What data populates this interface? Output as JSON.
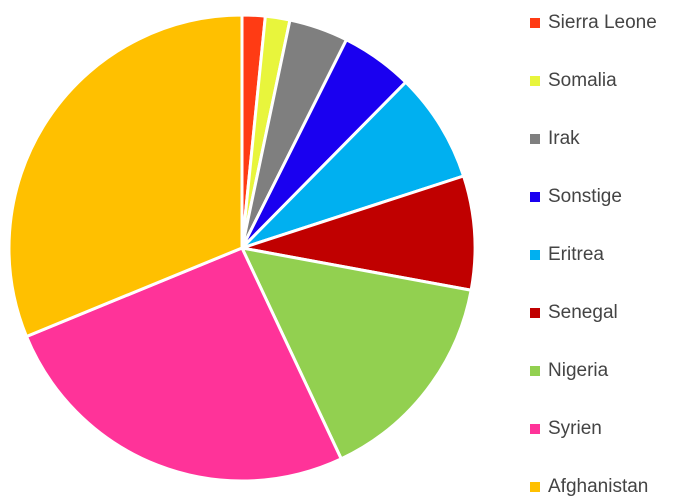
{
  "chart_data": {
    "type": "pie",
    "categories": [
      "Sierra Leone",
      "Somalia",
      "Irak",
      "Sonstige",
      "Eritrea",
      "Senegal",
      "Nigeria",
      "Syrien",
      "Afghanistan"
    ],
    "values": [
      1.6,
      1.7,
      4.1,
      5.0,
      7.6,
      7.9,
      15.1,
      25.8,
      31.2
    ],
    "colors": [
      "#ff3b14",
      "#e8f53c",
      "#7f7f7f",
      "#1a00f0",
      "#00b0f0",
      "#c00000",
      "#92d050",
      "#ff3399",
      "#ffc000"
    ],
    "legend": "right"
  }
}
